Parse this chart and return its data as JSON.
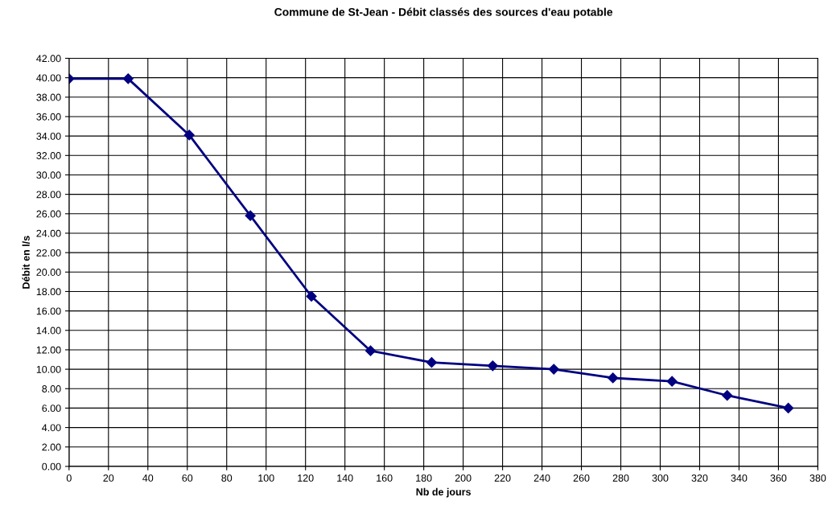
{
  "chart_data": {
    "type": "line",
    "title": "Commune de St-Jean - Débit classés des sources d'eau potable",
    "xlabel": "Nb de jours",
    "ylabel": "Débit en l/s",
    "x": [
      0,
      30,
      61,
      92,
      123,
      153,
      184,
      215,
      246,
      276,
      306,
      334,
      365
    ],
    "series": [
      {
        "color": "#000080",
        "values": [
          39.9,
          39.9,
          34.1,
          25.8,
          17.5,
          11.9,
          10.7,
          10.35,
          10.0,
          9.1,
          8.75,
          7.3,
          6.0
        ]
      }
    ],
    "xlim": [
      0,
      380
    ],
    "xticks": [
      0,
      20,
      40,
      60,
      80,
      100,
      120,
      140,
      160,
      180,
      200,
      220,
      240,
      260,
      280,
      300,
      320,
      340,
      360,
      380
    ],
    "ylim": [
      0,
      42
    ],
    "yticks": [
      {
        "value": 0,
        "label": "0.00"
      },
      {
        "value": 2,
        "label": "2.00"
      },
      {
        "value": 4,
        "label": "4.00"
      },
      {
        "value": 6,
        "label": "6.00"
      },
      {
        "value": 8,
        "label": "8.00"
      },
      {
        "value": 10,
        "label": "10.00"
      },
      {
        "value": 12,
        "label": "12.00"
      },
      {
        "value": 14,
        "label": "14.00"
      },
      {
        "value": 16,
        "label": "16.00"
      },
      {
        "value": 18,
        "label": "18.00"
      },
      {
        "value": 20,
        "label": "20.00"
      },
      {
        "value": 22,
        "label": "22.00"
      },
      {
        "value": 24,
        "label": "24.00"
      },
      {
        "value": 26,
        "label": "26.00"
      },
      {
        "value": 28,
        "label": "28.00"
      },
      {
        "value": 30,
        "label": "30.00"
      },
      {
        "value": 32,
        "label": "32.00"
      },
      {
        "value": 34,
        "label": "34.00"
      },
      {
        "value": 36,
        "label": "36.00"
      },
      {
        "value": 38,
        "label": "38.00"
      },
      {
        "value": 40,
        "label": "40.00"
      },
      {
        "value": 42,
        "label": "42.00"
      }
    ],
    "grid": true,
    "marker": "diamond",
    "line_style": "solid"
  }
}
